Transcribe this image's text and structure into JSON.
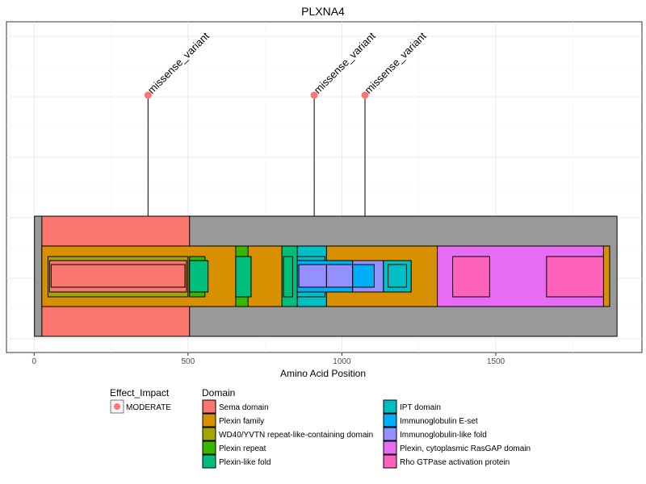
{
  "chart_data": {
    "type": "lollipop-protein-domain",
    "title": "PLXNA4",
    "xlabel": "Amino Acid Position",
    "ylabel": "",
    "xlim": [
      -90,
      1975
    ],
    "x_ticks": [
      0,
      500,
      1000,
      1500
    ],
    "x_tick_labels": [
      "0",
      "500",
      "1000",
      "1500"
    ],
    "grid": true,
    "protein": {
      "start": 1,
      "end": 1894,
      "color": "#999999"
    },
    "domains": [
      {
        "name": "Sema domain",
        "start": 25,
        "end": 505,
        "level": 0,
        "color": "#F8766D"
      },
      {
        "name": "Plexin family",
        "start": 25,
        "end": 1870,
        "level": 1,
        "color": "#D89000"
      },
      {
        "name": "WD40/YVTN repeat-like-containing domain",
        "start": 45,
        "end": 500,
        "level": 2,
        "color": "#A3A500"
      },
      {
        "name": "Sema domain",
        "start": 50,
        "end": 495,
        "level": 3,
        "color": "#F8766D"
      },
      {
        "name": "Sema domain",
        "start": 55,
        "end": 490,
        "level": 4,
        "color": "#F8766D"
      },
      {
        "name": "Plexin repeat",
        "start": 505,
        "end": 555,
        "level": 2,
        "color": "#39B600"
      },
      {
        "name": "Plexin-like fold",
        "start": 505,
        "end": 565,
        "level": 3,
        "color": "#00BF7D"
      },
      {
        "name": "Plexin repeat",
        "start": 655,
        "end": 695,
        "level": 1,
        "color": "#39B600"
      },
      {
        "name": "Plexin-like fold",
        "start": 655,
        "end": 705,
        "level": 2,
        "color": "#00BF7D"
      },
      {
        "name": "Plexin-like fold",
        "start": 805,
        "end": 855,
        "level": 1,
        "color": "#00BF7D"
      },
      {
        "name": "Plexin-like fold",
        "start": 810,
        "end": 840,
        "level": 2,
        "color": "#00BF7D"
      },
      {
        "name": "IPT domain",
        "start": 855,
        "end": 950,
        "level": 1,
        "color": "#00BFC4"
      },
      {
        "name": "IPT domain",
        "start": 855,
        "end": 945,
        "level": 2,
        "color": "#00BFC4"
      },
      {
        "name": "Immunoglobulin E-set",
        "start": 855,
        "end": 1035,
        "level": 3,
        "color": "#00B0F6"
      },
      {
        "name": "Immunoglobulin-like fold",
        "start": 860,
        "end": 950,
        "level": 4,
        "color": "#9590FF"
      },
      {
        "name": "Immunoglobulin-like fold",
        "start": 950,
        "end": 1035,
        "level": 4,
        "color": "#9590FF"
      },
      {
        "name": "Immunoglobulin-like fold",
        "start": 1035,
        "end": 1135,
        "level": 3,
        "color": "#9590FF"
      },
      {
        "name": "Immunoglobulin E-set",
        "start": 1035,
        "end": 1105,
        "level": 4,
        "color": "#00B0F6"
      },
      {
        "name": "IPT domain",
        "start": 1135,
        "end": 1225,
        "level": 3,
        "color": "#00BFC4"
      },
      {
        "name": "IPT domain",
        "start": 1150,
        "end": 1210,
        "level": 4,
        "color": "#00BFC4"
      },
      {
        "name": "Plexin, cytoplasmic RasGAP domain",
        "start": 1310,
        "end": 1850,
        "level": 1,
        "color": "#E76BF3"
      },
      {
        "name": "Rho GTPase activation protein",
        "start": 1360,
        "end": 1480,
        "level": 2,
        "color": "#FF62BC"
      },
      {
        "name": "Rho GTPase activation protein",
        "start": 1665,
        "end": 1850,
        "level": 2,
        "color": "#FF62BC"
      }
    ],
    "variants": [
      {
        "position": 370,
        "label": "missense_variant",
        "effect": "MODERATE"
      },
      {
        "position": 910,
        "label": "missense_variant",
        "effect": "MODERATE"
      },
      {
        "position": 1075,
        "label": "missense_variant",
        "effect": "MODERATE"
      }
    ],
    "legend_effect": {
      "title": "Effect_Impact",
      "items": [
        {
          "label": "MODERATE",
          "color": "#F8766D"
        }
      ]
    },
    "legend_domain": {
      "title": "Domain",
      "items": [
        {
          "label": "Sema domain",
          "color": "#F8766D"
        },
        {
          "label": "Plexin family",
          "color": "#D89000"
        },
        {
          "label": "WD40/YVTN repeat-like-containing domain",
          "color": "#A3A500"
        },
        {
          "label": "Plexin repeat",
          "color": "#39B600"
        },
        {
          "label": "Plexin-like fold",
          "color": "#00BF7D"
        },
        {
          "label": "IPT domain",
          "color": "#00BFC4"
        },
        {
          "label": "Immunoglobulin E-set",
          "color": "#00B0F6"
        },
        {
          "label": "Immunoglobulin-like fold",
          "color": "#9590FF"
        },
        {
          "label": "Plexin, cytoplasmic RasGAP domain",
          "color": "#E76BF3"
        },
        {
          "label": "Rho GTPase activation protein",
          "color": "#FF62BC"
        }
      ]
    }
  }
}
